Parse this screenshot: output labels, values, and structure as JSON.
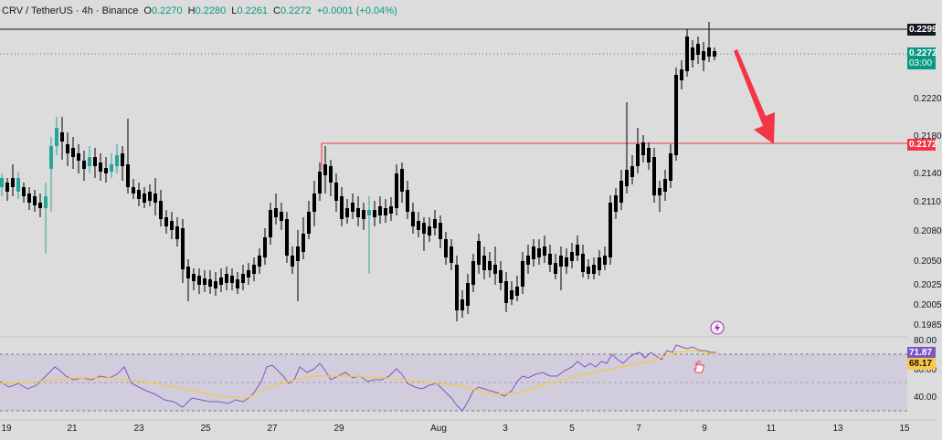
{
  "header": {
    "symbol": "CRV / TetherUS · 4h · Binance",
    "o_label": "O",
    "o_value": "0.2270",
    "h_label": "H",
    "h_value": "0.2280",
    "l_label": "L",
    "l_value": "0.2261",
    "c_label": "C",
    "c_value": "0.2272",
    "change": "+0.0001 (+0.04%)"
  },
  "price_axis": {
    "ticks": [
      "0.2220",
      "0.2180",
      "0.2140",
      "0.2110",
      "0.2080",
      "0.2050",
      "0.2025",
      "0.2005",
      "0.1985"
    ],
    "high_tag": "0.2299",
    "last_price_tag": "0.2272",
    "countdown_tag": "03:00",
    "resistance_tag": "0.2172"
  },
  "rsi_axis": {
    "ticks": [
      "80.00",
      "60.00",
      "40.00"
    ],
    "rsi_value": "71.87",
    "ma_value": "68.17"
  },
  "time_axis": {
    "labels": [
      "19",
      "21",
      "23",
      "25",
      "27",
      "29",
      "Aug",
      "3",
      "5",
      "7",
      "9",
      "11",
      "13",
      "15"
    ]
  },
  "colors": {
    "up": "#26a69a",
    "down": "#000000",
    "resistance": "#f23645",
    "arrow": "#f23645",
    "rsi_line": "#7e57c2",
    "rsi_ma": "#f9c846",
    "rsi_band": "#c9c3dc",
    "background": "#dcdcdc"
  },
  "icons": {
    "alert": "lightning-icon",
    "cursor": "hand-pointer-icon"
  }
}
